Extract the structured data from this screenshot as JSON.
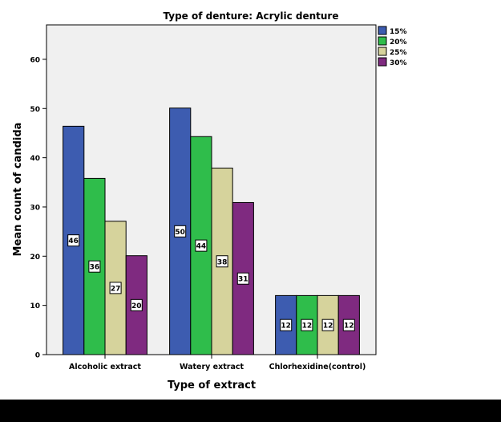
{
  "chart_data": {
    "type": "bar",
    "title": "Type of denture: Acrylic denture",
    "xlabel": "Type of extract",
    "ylabel": "Mean count of candida",
    "ylim": [
      0,
      67
    ],
    "yticks": [
      0,
      10,
      20,
      30,
      40,
      50,
      60
    ],
    "grid": false,
    "legend_position": "top-right",
    "categories": [
      "Alcoholic extract",
      "Watery extract",
      "Chlorhexidine(control)"
    ],
    "series": [
      {
        "name": "15%",
        "color": "#3d5cb0",
        "values": [
          46.4,
          50.1,
          12.0
        ],
        "labels": [
          "46",
          "50",
          "12"
        ]
      },
      {
        "name": "20%",
        "color": "#2fbd4b",
        "values": [
          35.8,
          44.3,
          12.0
        ],
        "labels": [
          "36",
          "44",
          "12"
        ]
      },
      {
        "name": "25%",
        "color": "#d6d39c",
        "values": [
          27.1,
          37.9,
          12.0
        ],
        "labels": [
          "27",
          "38",
          "12"
        ]
      },
      {
        "name": "30%",
        "color": "#7f2a80",
        "values": [
          20.1,
          30.9,
          12.0
        ],
        "labels": [
          "20",
          "31",
          "12"
        ]
      }
    ],
    "plot_background": "#f0f0f0"
  }
}
